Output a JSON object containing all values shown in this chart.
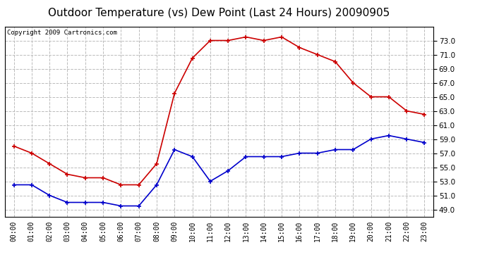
{
  "title": "Outdoor Temperature (vs) Dew Point (Last 24 Hours) 20090905",
  "copyright": "Copyright 2009 Cartronics.com",
  "x_labels": [
    "00:00",
    "01:00",
    "02:00",
    "03:00",
    "04:00",
    "05:00",
    "06:00",
    "07:00",
    "08:00",
    "09:00",
    "10:00",
    "11:00",
    "12:00",
    "13:00",
    "14:00",
    "15:00",
    "16:00",
    "17:00",
    "18:00",
    "19:00",
    "20:00",
    "21:00",
    "22:00",
    "23:00"
  ],
  "temp_red": [
    58.0,
    57.0,
    55.5,
    54.0,
    53.5,
    53.5,
    52.5,
    52.5,
    55.5,
    65.5,
    70.5,
    73.0,
    73.0,
    73.5,
    73.0,
    73.5,
    72.0,
    71.0,
    70.0,
    67.0,
    65.0,
    65.0,
    63.0,
    62.5
  ],
  "dew_blue": [
    52.5,
    52.5,
    51.0,
    50.0,
    50.0,
    50.0,
    49.5,
    49.5,
    52.5,
    57.5,
    56.5,
    53.0,
    54.5,
    56.5,
    56.5,
    56.5,
    57.0,
    57.0,
    57.5,
    57.5,
    59.0,
    59.5,
    59.0,
    58.5
  ],
  "ylim": [
    48.0,
    75.0
  ],
  "yticks": [
    49.0,
    51.0,
    53.0,
    55.0,
    57.0,
    59.0,
    61.0,
    63.0,
    65.0,
    67.0,
    69.0,
    71.0,
    73.0
  ],
  "bg_color": "#ffffff",
  "plot_bg": "#ffffff",
  "grid_color": "#bbbbbb",
  "red_color": "#cc0000",
  "blue_color": "#0000cc",
  "title_fontsize": 11,
  "copyright_fontsize": 6.5
}
